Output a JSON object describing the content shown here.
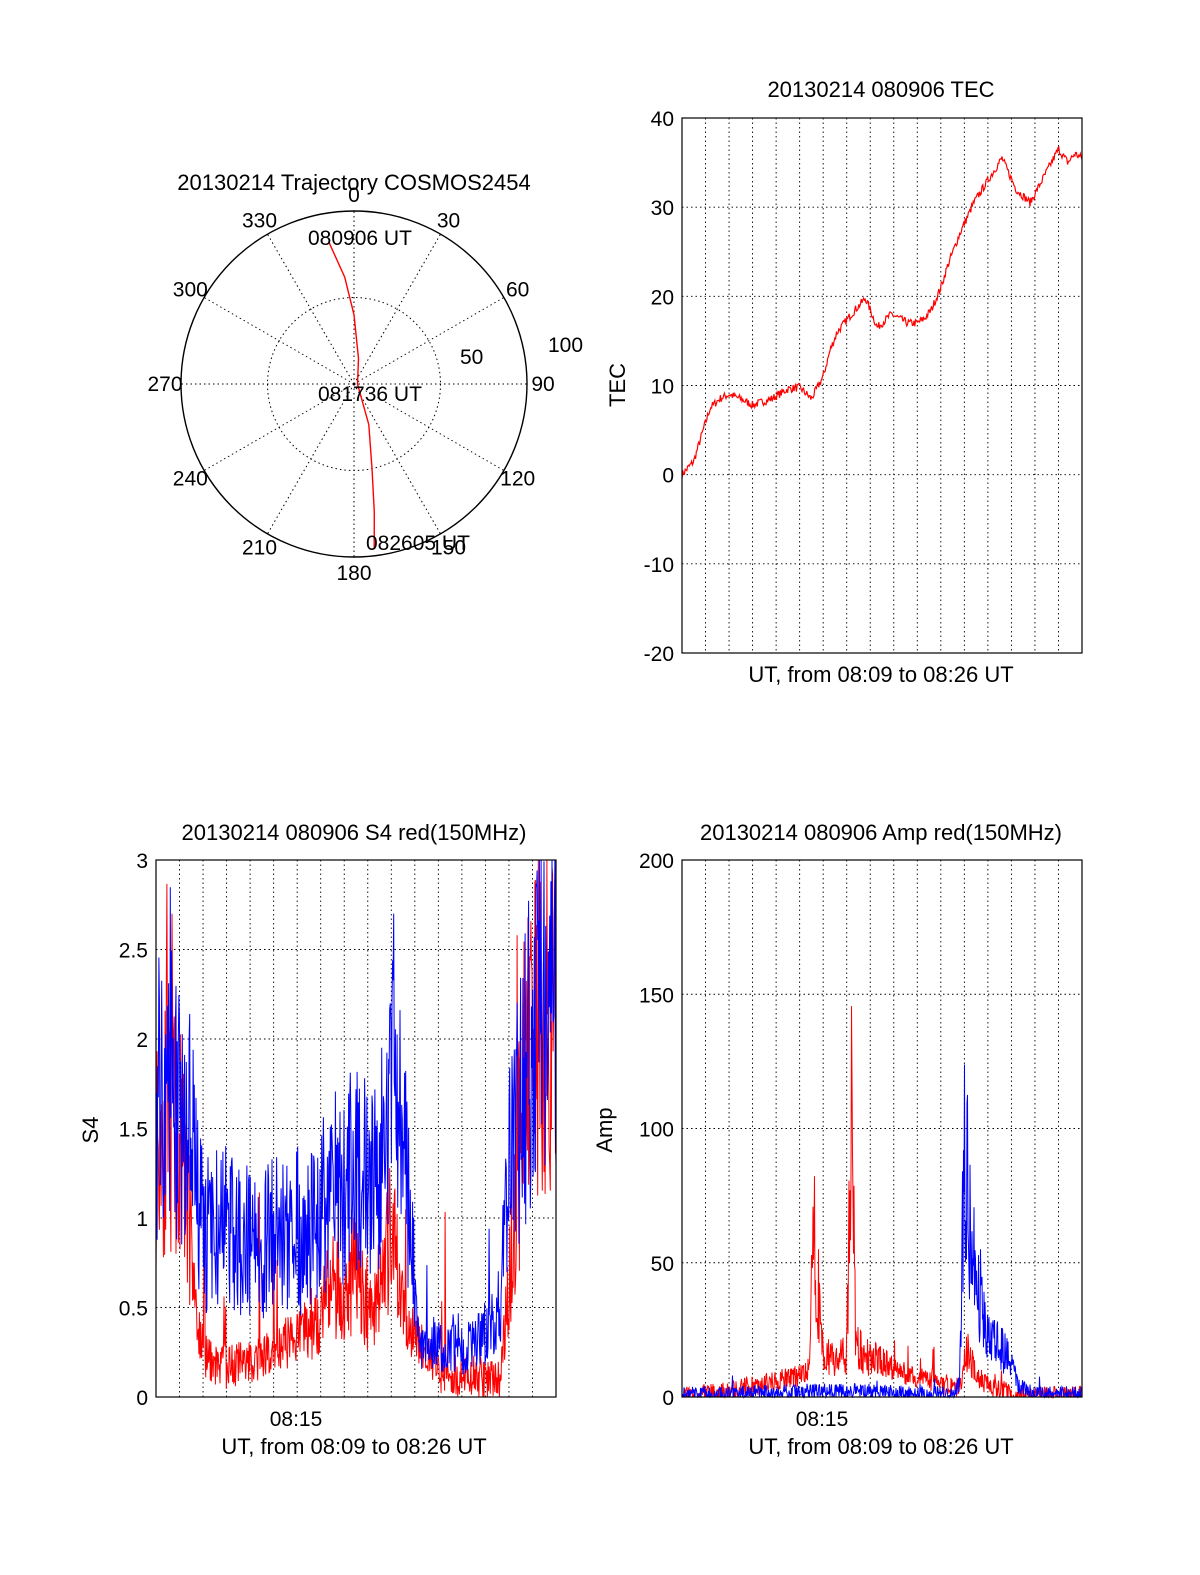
{
  "colors": {
    "red": "#ff0000",
    "blue": "#0000ff",
    "axis": "#000000",
    "grid": "#000000"
  },
  "polar": {
    "title": "20130214 Trajectory COSMOS2454",
    "azimuth_labels": [
      "0",
      "30",
      "60",
      "90",
      "120",
      "150",
      "180",
      "210",
      "240",
      "270",
      "300",
      "330"
    ],
    "azimuths": [
      0,
      30,
      60,
      90,
      120,
      150,
      180,
      210,
      240,
      270,
      300,
      330
    ],
    "radial_labels": [
      "50",
      "100"
    ],
    "point_labels": [
      {
        "text": "080906 UT",
        "az": 350,
        "r": 0.83
      },
      {
        "text": "081736 UT",
        "az": 0,
        "r": 0.02
      },
      {
        "text": "082605 UT",
        "az": 173,
        "r": 0.96
      }
    ]
  },
  "tec": {
    "title": "20130214 080906 TEC",
    "ylabel": "TEC",
    "xlabel": "UT, from 08:09 to 08:26 UT",
    "ytick_labels": [
      "40",
      "30",
      "20",
      "10",
      "0",
      "-10",
      "-20"
    ],
    "yticks": [
      40,
      30,
      20,
      10,
      0,
      -10,
      -20
    ],
    "ylim": [
      -20,
      40
    ]
  },
  "s4": {
    "title": "20130214 080906 S4 red(150MHz)",
    "ylabel": "S4",
    "xlabel": "UT, from 08:09 to 08:26 UT",
    "xtick_label": "08:15",
    "ytick_labels": [
      "3",
      "2.5",
      "2",
      "1.5",
      "1",
      "0.5",
      "0"
    ],
    "yticks": [
      3,
      2.5,
      2,
      1.5,
      1,
      0.5,
      0
    ],
    "ylim": [
      0,
      3
    ]
  },
  "amp": {
    "title": "20130214 080906 Amp red(150MHz)",
    "ylabel": "Amp",
    "xlabel": "UT, from 08:09 to 08:26 UT",
    "xtick_label": "08:15",
    "ytick_labels": [
      "200",
      "150",
      "100",
      "50",
      "0"
    ],
    "yticks": [
      200,
      150,
      100,
      50,
      0
    ],
    "ylim": [
      0,
      200
    ]
  },
  "chart_data": [
    {
      "type": "polar",
      "title": "20130214 Trajectory COSMOS2454",
      "radial_scale": "zenith distance, circles at 50 and 100",
      "grid": true,
      "series": [
        {
          "color": "#ff0000",
          "points_az_r": [
            [
              350,
              0.83
            ],
            [
              355,
              0.62
            ],
            [
              0,
              0.4
            ],
            [
              10,
              0.15
            ],
            [
              90,
              0.02
            ],
            [
              160,
              0.25
            ],
            [
              168,
              0.5
            ],
            [
              171,
              0.75
            ],
            [
              173,
              0.96
            ]
          ]
        }
      ]
    },
    {
      "type": "line",
      "title": "20130214 080906 TEC",
      "xlabel": "UT, from 08:09 to 08:26 UT",
      "ylabel": "TEC",
      "ylim": [
        -20,
        40
      ],
      "xlim_minutes": [
        0,
        17
      ],
      "grid": true,
      "series": [
        {
          "color": "#ff0000",
          "x": [
            0,
            0.5,
            0.9,
            1.2,
            1.6,
            2.0,
            2.5,
            3.0,
            3.8,
            4.5,
            5.0,
            5.5,
            6.0,
            6.3,
            6.6,
            7.2,
            7.8,
            8.3,
            8.9,
            9.6,
            10.0,
            10.3,
            10.6,
            11.0,
            11.3,
            11.8,
            12.4,
            13.0,
            13.6,
            14.2,
            14.8,
            15.1,
            15.5,
            16.0,
            16.4,
            16.7,
            17.0
          ],
          "values": [
            0,
            1.5,
            5,
            7.5,
            8.5,
            9,
            8.5,
            7.8,
            8.5,
            9.6,
            9.8,
            8.5,
            11,
            14,
            16,
            18,
            19.8,
            16.5,
            18,
            17,
            17,
            17.5,
            18.5,
            21,
            23.5,
            27,
            30.5,
            33,
            35.5,
            32,
            30.5,
            32,
            34,
            36.5,
            35,
            36,
            35.5
          ]
        }
      ]
    },
    {
      "type": "line",
      "title": "20130214 080906 S4 red(150MHz)",
      "xlabel": "UT, from 08:09 to 08:26 UT",
      "ylabel": "S4",
      "ylim": [
        0,
        3
      ],
      "xlim_minutes": [
        0,
        17
      ],
      "grid": true,
      "series": [
        {
          "color": "#ff0000",
          "x": [
            0,
            0.5,
            1.0,
            1.5,
            1.8,
            2.2,
            3.0,
            4.0,
            5.0,
            6.0,
            7.0,
            7.5,
            8.0,
            8.5,
            9.0,
            9.5,
            10.0,
            10.5,
            11.2,
            12.0,
            13.0,
            14.0,
            14.6,
            15.0,
            15.5,
            16.0,
            17.0
          ],
          "values": [
            1.4,
            1.6,
            1.4,
            0.9,
            0.35,
            0.2,
            0.17,
            0.2,
            0.25,
            0.35,
            0.45,
            0.65,
            0.5,
            0.8,
            0.45,
            0.6,
            0.9,
            0.5,
            0.3,
            0.15,
            0.12,
            0.1,
            0.1,
            0.6,
            1.5,
            2.2,
            2.0
          ]
        },
        {
          "color": "#0000ff",
          "x": [
            0,
            0.5,
            1.0,
            1.5,
            1.8,
            2.2,
            3.0,
            4.0,
            5.0,
            6.0,
            7.0,
            7.5,
            8.0,
            8.5,
            9.0,
            9.5,
            10.0,
            10.5,
            11.2,
            12.0,
            13.0,
            14.0,
            14.6,
            15.0,
            15.5,
            16.0,
            17.0
          ],
          "values": [
            1.6,
            2.0,
            1.6,
            1.4,
            1.0,
            0.9,
            0.95,
            0.85,
            0.9,
            0.85,
            1.0,
            1.2,
            1.1,
            1.4,
            1.3,
            1.2,
            1.9,
            1.5,
            0.3,
            0.3,
            0.25,
            0.35,
            0.5,
            1.2,
            1.6,
            2.0,
            2.2
          ]
        }
      ]
    },
    {
      "type": "line",
      "title": "20130214 080906 Amp red(150MHz)",
      "xlabel": "UT, from 08:09 to 08:26 UT",
      "ylabel": "Amp",
      "ylim": [
        0,
        200
      ],
      "xlim_minutes": [
        0,
        17
      ],
      "grid": true,
      "series": [
        {
          "color": "#ff0000",
          "x": [
            0,
            1.0,
            2.0,
            3.0,
            4.0,
            5.0,
            5.4,
            5.6,
            6.0,
            6.5,
            7.0,
            7.2,
            7.4,
            8.0,
            9.0,
            10.0,
            11.0,
            11.5,
            11.8,
            12.1,
            12.5,
            13.0,
            14.0,
            15.0,
            17.0
          ],
          "values": [
            0,
            1,
            2,
            4,
            6,
            8,
            10,
            62,
            15,
            14,
            16,
            112,
            18,
            15,
            10,
            7,
            5,
            4,
            3,
            18,
            8,
            4,
            1,
            0,
            0
          ]
        },
        {
          "color": "#0000ff",
          "x": [
            0,
            2.0,
            4.0,
            6.0,
            8.0,
            10.0,
            11.5,
            11.8,
            12.0,
            12.3,
            12.6,
            13.0,
            13.3,
            13.6,
            14.0,
            14.3,
            15.0,
            17.0
          ],
          "values": [
            1,
            1,
            2,
            2,
            2,
            1,
            1,
            5,
            95,
            60,
            40,
            25,
            20,
            18,
            12,
            4,
            1,
            1
          ]
        }
      ]
    }
  ]
}
